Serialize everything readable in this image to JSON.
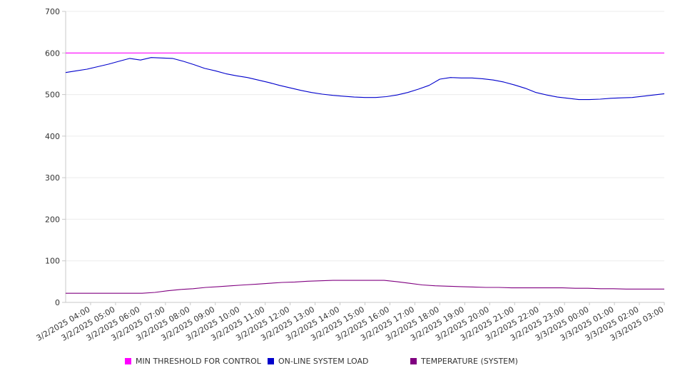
{
  "chart_data": {
    "type": "line",
    "title": "",
    "xlabel": "",
    "ylabel": "",
    "ylim": [
      0,
      700
    ],
    "y_ticks": [
      0,
      100,
      200,
      300,
      400,
      500,
      600,
      700
    ],
    "x_tick_labels": [
      "3/2/2025 04:00",
      "3/2/2025 05:00",
      "3/2/2025 06:00",
      "3/2/2025 07:00",
      "3/2/2025 08:00",
      "3/2/2025 09:00",
      "3/2/2025 10:00",
      "3/2/2025 11:00",
      "3/2/2025 12:00",
      "3/2/2025 13:00",
      "3/2/2025 14:00",
      "3/2/2025 15:00",
      "3/2/2025 16:00",
      "3/2/2025 17:00",
      "3/2/2025 18:00",
      "3/2/2025 19:00",
      "3/2/2025 20:00",
      "3/2/2025 21:00",
      "3/2/2025 22:00",
      "3/2/2025 23:00",
      "3/3/2025 00:00",
      "3/3/2025 01:00",
      "3/3/2025 02:00",
      "3/3/2025 03:00"
    ],
    "x_range": [
      "3/2/2025 04:00",
      "3/3/2025 04:00"
    ],
    "grid": true,
    "legend_position": "bottom",
    "series": [
      {
        "name": "MIN THRESHOLD FOR CONTROL",
        "color": "#ff00ff",
        "values": [
          600,
          600
        ]
      },
      {
        "name": "ON-LINE SYSTEM LOAD",
        "color": "#0000cc",
        "values": [
          553,
          557,
          561,
          567,
          573,
          580,
          587,
          583,
          589,
          588,
          587,
          580,
          572,
          563,
          557,
          550,
          545,
          541,
          535,
          529,
          522,
          516,
          510,
          505,
          501,
          498,
          496,
          494,
          493,
          493,
          495,
          499,
          505,
          513,
          522,
          537,
          541,
          540,
          540,
          538,
          535,
          530,
          523,
          515,
          505,
          499,
          494,
          491,
          488,
          488,
          489,
          491,
          492,
          493,
          496,
          499,
          502
        ]
      },
      {
        "name": "TEMPERATURE (SYSTEM)",
        "color": "#800080",
        "values": [
          22,
          22,
          22,
          22,
          22,
          22,
          22,
          24,
          28,
          31,
          33,
          36,
          38,
          40,
          42,
          44,
          46,
          48,
          49,
          51,
          52,
          53,
          53,
          53,
          53,
          53,
          50,
          46,
          42,
          40,
          39,
          38,
          37,
          36,
          36,
          35,
          35,
          35,
          35,
          35,
          34,
          34,
          33,
          33,
          32,
          32,
          32,
          32
        ]
      }
    ]
  }
}
